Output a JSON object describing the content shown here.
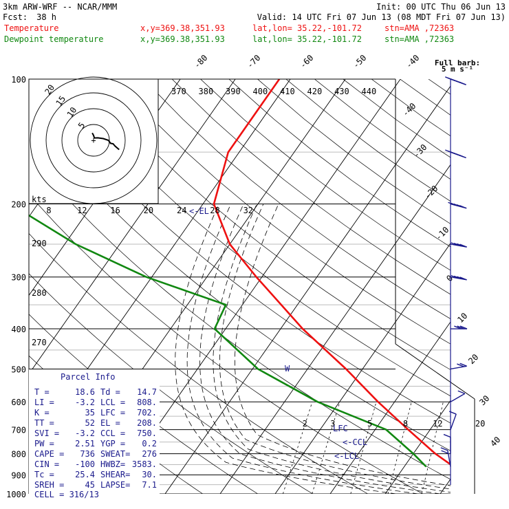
{
  "header": {
    "model": "3km ARW-WRF -- NCAR/MMM",
    "init": "Init: 00 UTC Thu 06 Jun 13",
    "fcst_label": "Fcst:",
    "fcst_value": "38 h",
    "valid": "Valid: 14 UTC Fri 07 Jun 13 (08 MDT Fri 07 Jun 13)",
    "temp_label": "Temperature",
    "dew_label": "Dewpoint temperature",
    "xy": "x,y=369.38,351.93",
    "latlon": "lat,lon= 35.22,-101.72",
    "stn": "stn=AMA ,72363",
    "temp_color": "#ee1111",
    "dew_color": "#118811",
    "barb_color": "#1a1a8c"
  },
  "barb_key": {
    "line1": "Full barb:",
    "line2": "5 m s⁻¹"
  },
  "chart_data": {
    "type": "skew-t",
    "pressure_ticks": [
      100,
      200,
      300,
      400,
      500,
      600,
      700,
      800,
      900,
      1000
    ],
    "temperature_isotherms": [
      -40,
      -30,
      -20,
      -10,
      0,
      10,
      20,
      30,
      40
    ],
    "upper_isotherm_labels": [
      -80,
      -70,
      -60,
      -50,
      -40
    ],
    "theta_labels": [
      370,
      380,
      390,
      400,
      410,
      420,
      430,
      440
    ],
    "mixing_ratio_labels": [
      2,
      3,
      5,
      8,
      12,
      20
    ],
    "thetae_left_labels": [
      290,
      280,
      270
    ],
    "hodograph_rings": [
      5,
      10,
      15,
      20
    ],
    "hodograph_labels": [
      "5",
      "10",
      "15",
      "20"
    ],
    "pw_axis_label": "kts",
    "pw_ticks": [
      8,
      12,
      16,
      20,
      24,
      28,
      32
    ],
    "levels_marked": {
      "EL": "<-EL",
      "LFC": "LFC",
      "CCL": "<-CCL",
      "LCL": "<-LCL",
      "pw_marker": "W"
    },
    "temperature_profile": [
      {
        "p": 100,
        "t": -62
      },
      {
        "p": 150,
        "t": -62
      },
      {
        "p": 200,
        "t": -58
      },
      {
        "p": 250,
        "t": -50
      },
      {
        "p": 300,
        "t": -41
      },
      {
        "p": 400,
        "t": -26
      },
      {
        "p": 500,
        "t": -13
      },
      {
        "p": 600,
        "t": -3
      },
      {
        "p": 700,
        "t": 6
      },
      {
        "p": 800,
        "t": 14
      },
      {
        "p": 860,
        "t": 19
      }
    ],
    "dewpoint_profile": [
      {
        "p": 100,
        "t": -91
      },
      {
        "p": 150,
        "t": -96
      },
      {
        "p": 200,
        "t": -95
      },
      {
        "p": 250,
        "t": -78
      },
      {
        "p": 300,
        "t": -61
      },
      {
        "p": 350,
        "t": -43
      },
      {
        "p": 400,
        "t": -42
      },
      {
        "p": 500,
        "t": -29
      },
      {
        "p": 600,
        "t": -14
      },
      {
        "p": 700,
        "t": 2
      },
      {
        "p": 800,
        "t": 10
      },
      {
        "p": 860,
        "t": 14
      }
    ],
    "wind_profile": [
      {
        "p": 100,
        "spd": 55,
        "dir": 290
      },
      {
        "p": 150,
        "spd": 55,
        "dir": 290
      },
      {
        "p": 200,
        "spd": 45,
        "dir": 285
      },
      {
        "p": 250,
        "spd": 40,
        "dir": 280
      },
      {
        "p": 300,
        "spd": 35,
        "dir": 280
      },
      {
        "p": 400,
        "spd": 30,
        "dir": 270
      },
      {
        "p": 500,
        "spd": 20,
        "dir": 260
      },
      {
        "p": 600,
        "spd": 10,
        "dir": 240
      },
      {
        "p": 700,
        "spd": 5,
        "dir": 200
      },
      {
        "p": 800,
        "spd": 10,
        "dir": 180
      },
      {
        "p": 860,
        "spd": 15,
        "dir": 170
      }
    ]
  },
  "parcel": {
    "title": "Parcel Info",
    "rows": [
      [
        "T  =",
        "18.6",
        "Td =",
        "14.7"
      ],
      [
        "LI =",
        "-3.2",
        "LCL =",
        "808."
      ],
      [
        "K  =",
        "35",
        "LFC =",
        "702."
      ],
      [
        "TT =",
        "52",
        "EL =",
        "208."
      ],
      [
        "SVI =",
        "-3.2",
        "CCL =",
        "750."
      ],
      [
        "PW =",
        "2.51",
        "YGP =",
        "0.2"
      ],
      [
        "CAPE =",
        "736",
        "SWEAT=",
        "276"
      ],
      [
        "CIN =",
        "-100",
        "HWBZ=",
        "3583."
      ],
      [
        "Tc =",
        "25.4",
        "SHEAR=",
        "30."
      ],
      [
        "SREH =",
        "45",
        "LAPSE=",
        "7.1"
      ]
    ],
    "cell_label": "CELL = 316/13"
  }
}
